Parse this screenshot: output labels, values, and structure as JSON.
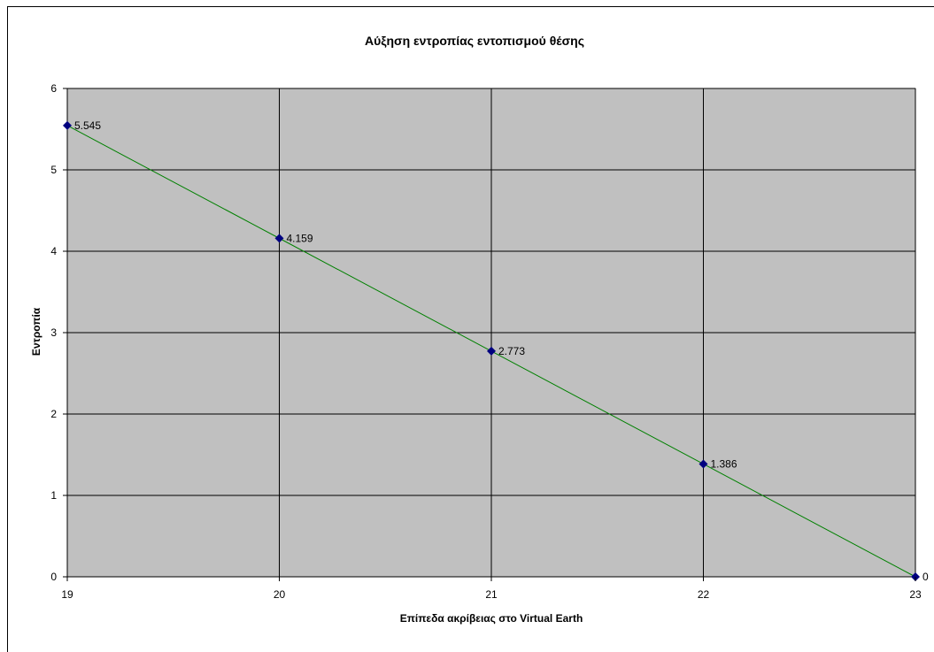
{
  "chart_data": {
    "type": "scatter",
    "title": "Αύξηση εντροπίας εντοπισμού θέσης",
    "xlabel": "Επίπεδα ακρίβειας στο Virtual Earth",
    "ylabel": "Εντροπία",
    "xlim": [
      19,
      23
    ],
    "ylim": [
      0,
      6
    ],
    "xticks": [
      "19",
      "20",
      "21",
      "22",
      "23"
    ],
    "yticks": [
      "0",
      "1",
      "2",
      "3",
      "4",
      "5",
      "6"
    ],
    "grid": true,
    "legend": "none",
    "series": [
      {
        "x": [
          19,
          20,
          21,
          22,
          23
        ],
        "y": [
          5.545,
          4.159,
          2.773,
          1.386,
          0
        ],
        "labels": [
          "5.545",
          "4.159",
          "2.773",
          "1.386",
          "0"
        ],
        "marker_color": "#000080",
        "line_color": "#008000"
      }
    ],
    "plot_background": "#c0c0c0"
  }
}
